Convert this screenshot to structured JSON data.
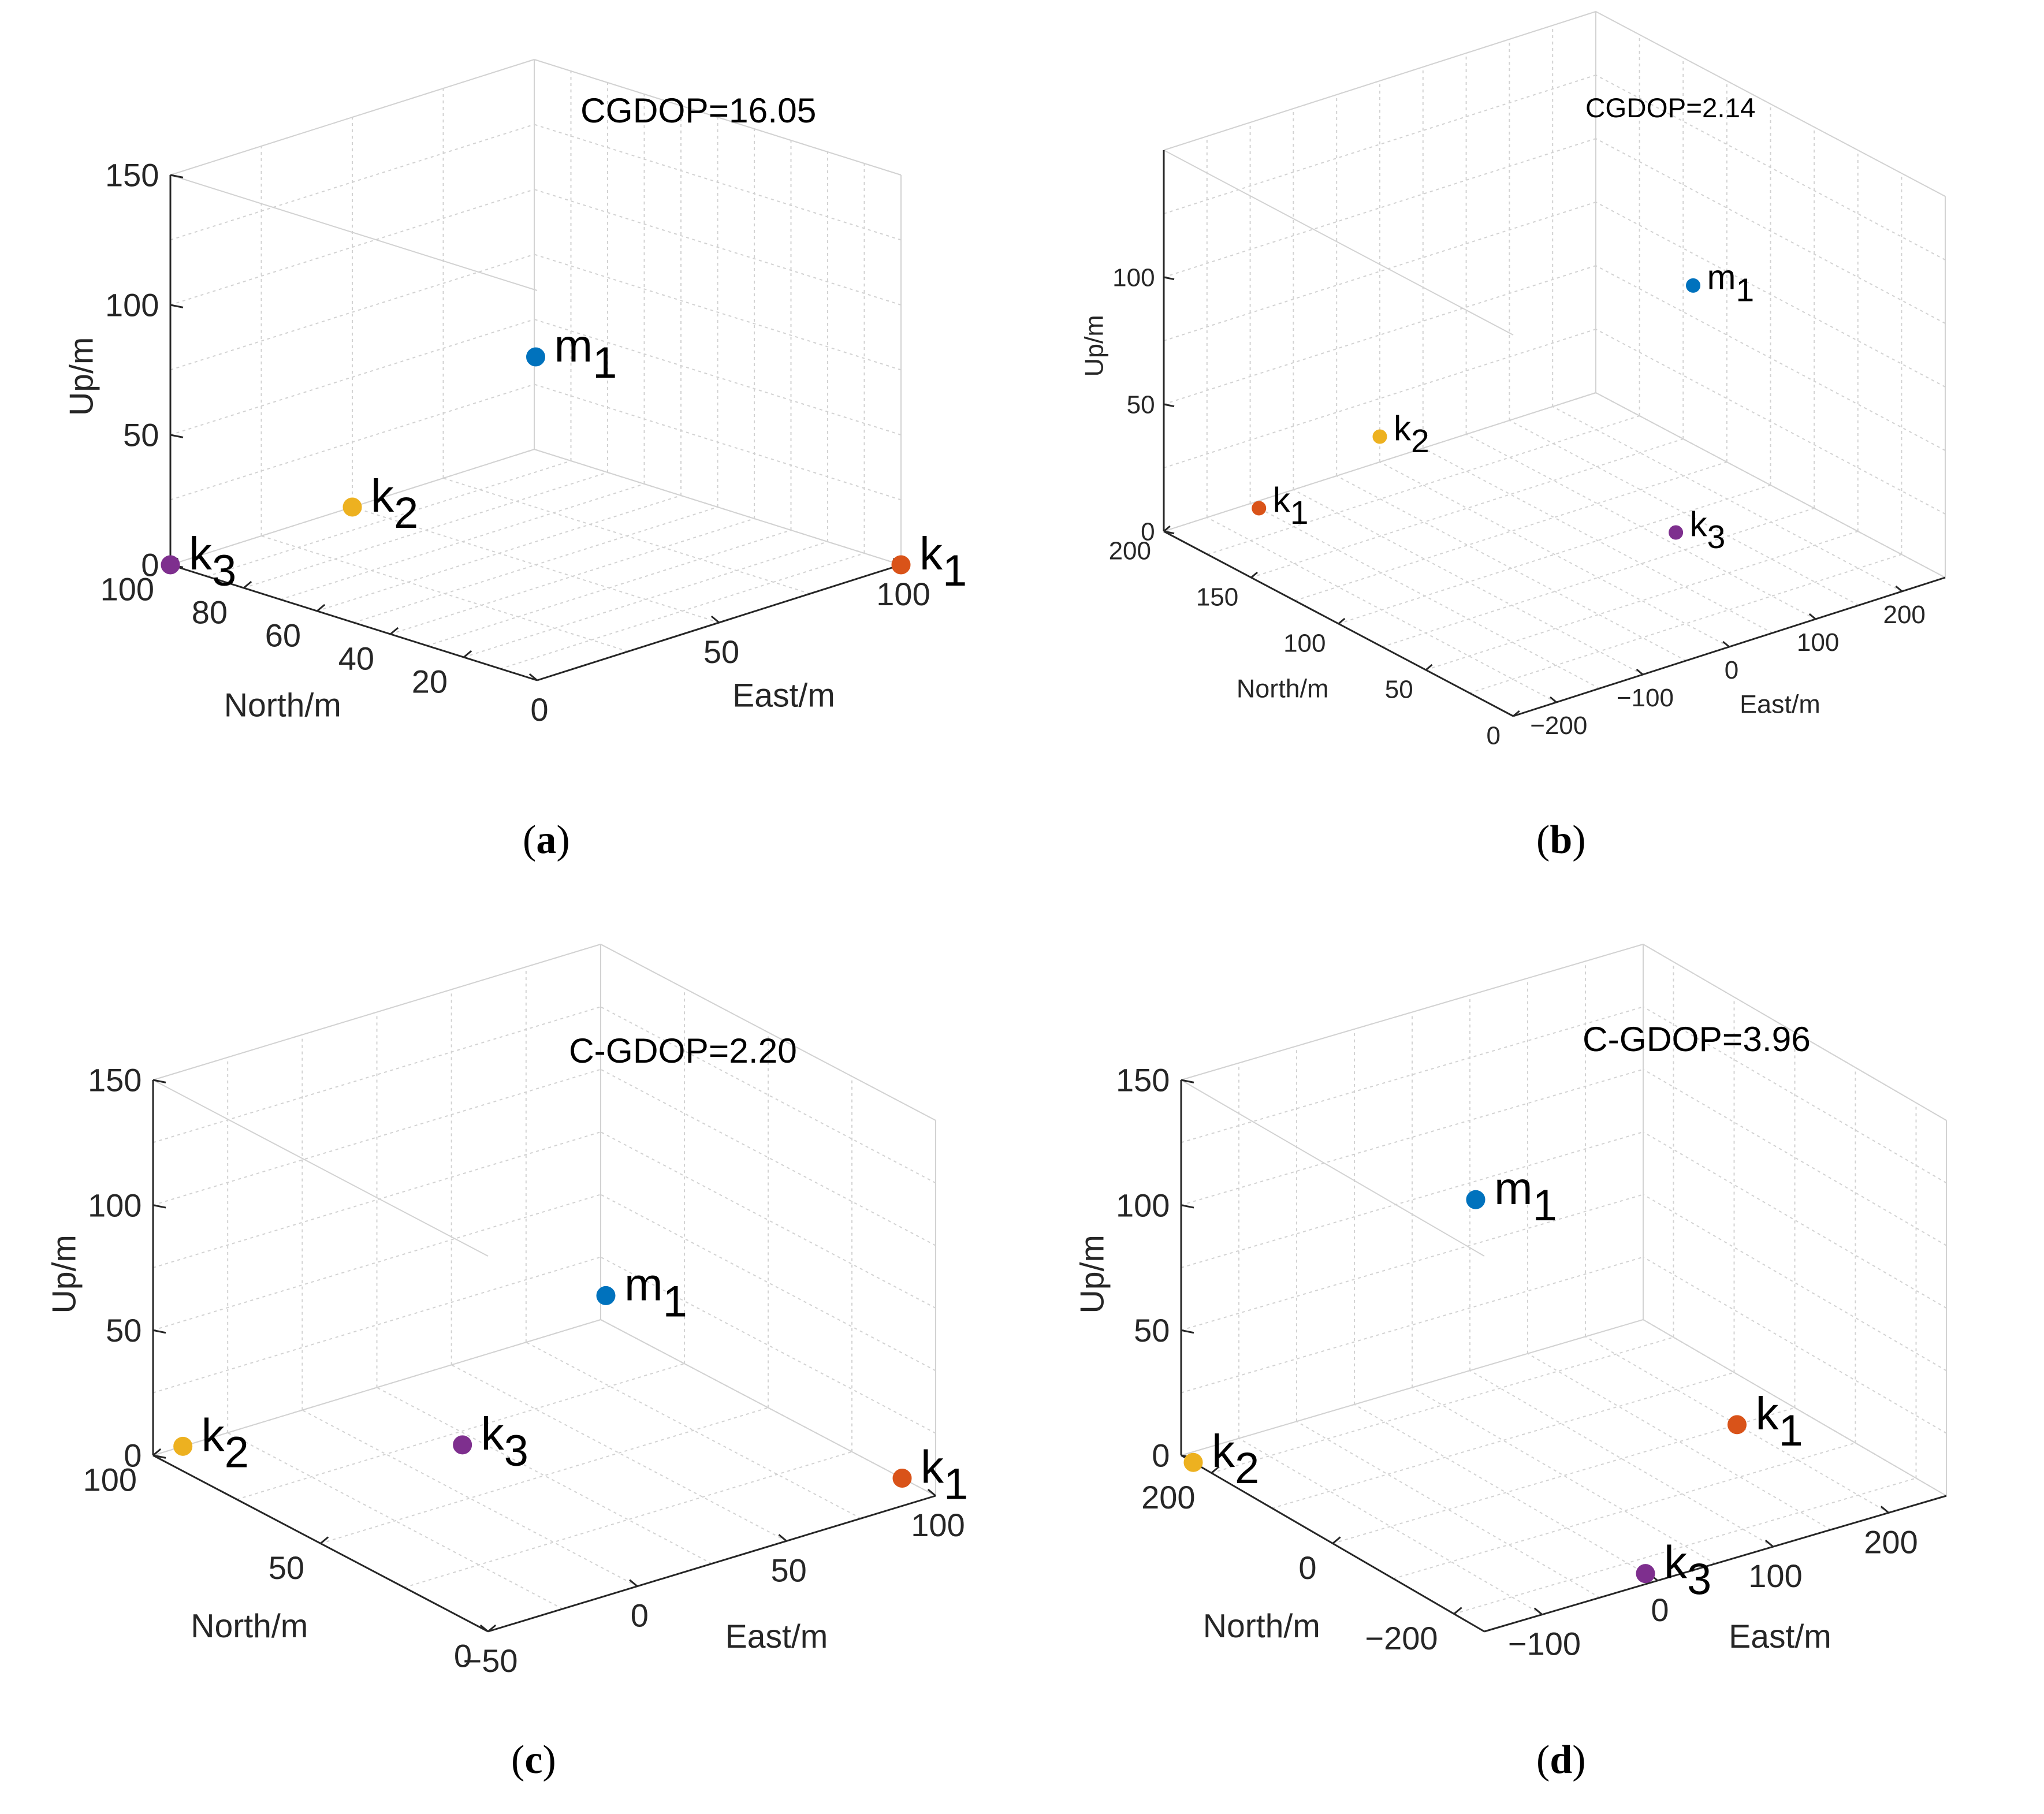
{
  "colors": {
    "m1": "#0072BD",
    "k1": "#D95319",
    "k2": "#EDB120",
    "k3": "#7E2F8E",
    "grid": "#d2d2d2",
    "axis": "#262626"
  },
  "chart_data": [
    {
      "type": "scatter3d",
      "panel_label": "a",
      "title": "CGDOP=16.05",
      "xlabel": "East/m",
      "ylabel": "North/m",
      "zlabel": "Up/m",
      "xlim": [
        0,
        100
      ],
      "ylim": [
        0,
        100
      ],
      "zlim": [
        0,
        150
      ],
      "xticks": [
        {
          "v": 0,
          "label": "0"
        },
        {
          "v": 50,
          "label": "50"
        },
        {
          "v": 100,
          "label": "100"
        }
      ],
      "yticks": [
        {
          "v": 20,
          "label": "20"
        },
        {
          "v": 40,
          "label": "40"
        },
        {
          "v": 60,
          "label": "60"
        },
        {
          "v": 80,
          "label": "80"
        },
        {
          "v": 100,
          "label": "100"
        }
      ],
      "zticks": [
        {
          "v": 0,
          "label": "0"
        },
        {
          "v": 50,
          "label": "50"
        },
        {
          "v": 100,
          "label": "100"
        },
        {
          "v": 150,
          "label": "150"
        }
      ],
      "points": [
        {
          "name": "m",
          "sub": "1",
          "color": "#0072BD",
          "x": 50,
          "y": 50,
          "z": 80
        },
        {
          "name": "k",
          "sub": "1",
          "color": "#D95319",
          "x": 100,
          "y": 0,
          "z": 0
        },
        {
          "name": "k",
          "sub": "2",
          "color": "#EDB120",
          "x": 50,
          "y": 100,
          "z": 0
        },
        {
          "name": "k",
          "sub": "3",
          "color": "#7E2F8E",
          "x": 0,
          "y": 100,
          "z": 0
        }
      ]
    },
    {
      "type": "scatter3d",
      "panel_label": "b",
      "title": "CGDOP=2.14",
      "xlabel": "East/m",
      "ylabel": "North/m",
      "zlabel": "Up/m",
      "xlim": [
        -250,
        250
      ],
      "ylim": [
        0,
        200
      ],
      "zlim": [
        0,
        150
      ],
      "xticks": [
        {
          "v": -200,
          "label": "−200"
        },
        {
          "v": -100,
          "label": "−100"
        },
        {
          "v": 0,
          "label": "0"
        },
        {
          "v": 100,
          "label": "100"
        },
        {
          "v": 200,
          "label": "200"
        }
      ],
      "yticks": [
        {
          "v": 0,
          "label": "0"
        },
        {
          "v": 50,
          "label": "50"
        },
        {
          "v": 100,
          "label": "100"
        },
        {
          "v": 150,
          "label": "150"
        },
        {
          "v": 200,
          "label": "200"
        }
      ],
      "zticks": [
        {
          "v": 0,
          "label": "0"
        },
        {
          "v": 50,
          "label": "50"
        },
        {
          "v": 100,
          "label": "100"
        }
      ],
      "points": [
        {
          "name": "m",
          "sub": "1",
          "color": "#0072BD",
          "x": 120,
          "y": 80,
          "z": 100
        },
        {
          "name": "k",
          "sub": "1",
          "color": "#D95319",
          "x": -150,
          "y": 195,
          "z": 0
        },
        {
          "name": "k",
          "sub": "2",
          "color": "#EDB120",
          "x": 0,
          "y": 200,
          "z": 10
        },
        {
          "name": "k",
          "sub": "3",
          "color": "#7E2F8E",
          "x": 100,
          "y": 80,
          "z": 5
        }
      ]
    },
    {
      "type": "scatter3d",
      "panel_label": "c",
      "title": "C-GDOP=2.20",
      "xlabel": "East/m",
      "ylabel": "North/m",
      "zlabel": "Up/m",
      "xlim": [
        -50,
        100
      ],
      "ylim": [
        0,
        100
      ],
      "zlim": [
        0,
        150
      ],
      "xticks": [
        {
          "v": -50,
          "label": "−50"
        },
        {
          "v": 0,
          "label": "0"
        },
        {
          "v": 50,
          "label": "50"
        },
        {
          "v": 100,
          "label": "100"
        }
      ],
      "yticks": [
        {
          "v": 0,
          "label": "0"
        },
        {
          "v": 50,
          "label": "50"
        },
        {
          "v": 100,
          "label": "100"
        }
      ],
      "zticks": [
        {
          "v": 0,
          "label": "0"
        },
        {
          "v": 50,
          "label": "50"
        },
        {
          "v": 100,
          "label": "100"
        },
        {
          "v": 150,
          "label": "150"
        }
      ],
      "points": [
        {
          "name": "m",
          "sub": "1",
          "color": "#0072BD",
          "x": 40,
          "y": 45,
          "z": 70
        },
        {
          "name": "k",
          "sub": "1",
          "color": "#D95319",
          "x": 100,
          "y": 10,
          "z": 0
        },
        {
          "name": "k",
          "sub": "2",
          "color": "#EDB120",
          "x": -40,
          "y": 100,
          "z": 0
        },
        {
          "name": "k",
          "sub": "3",
          "color": "#7E2F8E",
          "x": 20,
          "y": 70,
          "z": 0
        }
      ]
    },
    {
      "type": "scatter3d",
      "panel_label": "d",
      "title": "C-GDOP=3.96",
      "xlabel": "East/m",
      "ylabel": "North/m",
      "zlabel": "Up/m",
      "xlim": [
        -150,
        250
      ],
      "ylim": [
        -250,
        250
      ],
      "zlim": [
        0,
        150
      ],
      "xticks": [
        {
          "v": -100,
          "label": "−100"
        },
        {
          "v": 0,
          "label": "0"
        },
        {
          "v": 100,
          "label": "100"
        },
        {
          "v": 200,
          "label": "200"
        }
      ],
      "yticks": [
        {
          "v": -200,
          "label": "−200"
        },
        {
          "v": 0,
          "label": "0"
        },
        {
          "v": 200,
          "label": "200"
        }
      ],
      "zticks": [
        {
          "v": 0,
          "label": "0"
        },
        {
          "v": 50,
          "label": "50"
        },
        {
          "v": 100,
          "label": "100"
        },
        {
          "v": 150,
          "label": "150"
        }
      ],
      "points": [
        {
          "name": "m",
          "sub": "1",
          "color": "#0072BD",
          "x": 0,
          "y": 50,
          "z": 110
        },
        {
          "name": "k",
          "sub": "1",
          "color": "#D95319",
          "x": 200,
          "y": 0,
          "z": 0
        },
        {
          "name": "k",
          "sub": "2",
          "color": "#EDB120",
          "x": -150,
          "y": 230,
          "z": 0
        },
        {
          "name": "k",
          "sub": "3",
          "color": "#7E2F8E",
          "x": 0,
          "y": -230,
          "z": 0
        }
      ]
    }
  ]
}
